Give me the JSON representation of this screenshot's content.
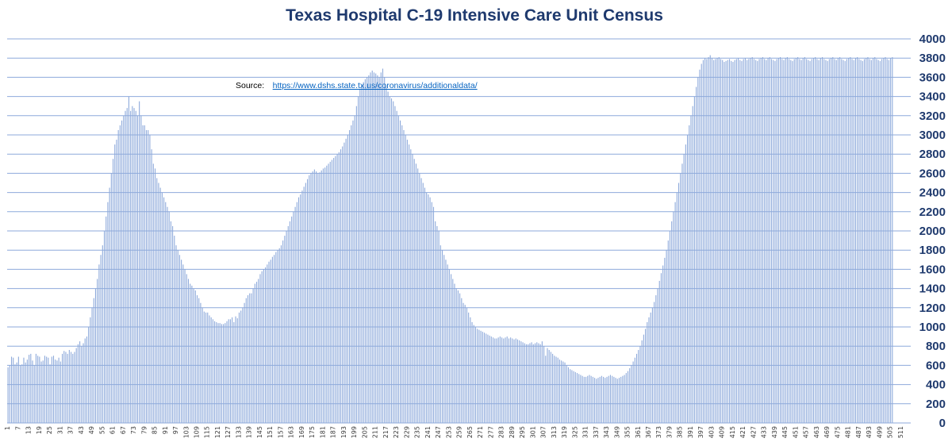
{
  "chart_data": {
    "type": "bar",
    "title": "Texas Hospital C-19 Intensive Care Unit Census",
    "xlabel": "",
    "ylabel": "",
    "ylim": [
      0,
      4000
    ],
    "y_ticks": [
      0,
      200,
      400,
      600,
      800,
      1000,
      1200,
      1400,
      1600,
      1800,
      2000,
      2200,
      2400,
      2600,
      2800,
      3000,
      3200,
      3400,
      3600,
      3800,
      4000
    ],
    "x_count": 516,
    "x_tick_labels": [
      "1",
      "7",
      "13",
      "19",
      "25",
      "31",
      "37",
      "43",
      "49",
      "55",
      "61",
      "67",
      "73",
      "79",
      "85",
      "91",
      "97",
      "103",
      "109",
      "115",
      "121",
      "127",
      "133",
      "139",
      "145",
      "151",
      "157",
      "163",
      "169",
      "175",
      "181",
      "187",
      "193",
      "199",
      "205",
      "211",
      "217",
      "223",
      "229",
      "235",
      "241",
      "247",
      "253",
      "259",
      "265",
      "271",
      "277",
      "283",
      "289",
      "295",
      "301",
      "307",
      "313",
      "319",
      "325",
      "331",
      "337",
      "343",
      "349",
      "355",
      "361",
      "367",
      "373",
      "379",
      "385",
      "391",
      "397",
      "403",
      "409",
      "415",
      "421",
      "427",
      "433",
      "439",
      "445",
      "451",
      "457",
      "463",
      "469",
      "475",
      "481",
      "487",
      "493",
      "499",
      "505",
      "511"
    ],
    "bar_color": "#8eaadb",
    "grid": true,
    "grid_color": "#8eaadb",
    "annotation": {
      "prefix": "Source:",
      "link": "https://www.dshs.state.tx.us/coronavirus/additionaldata/"
    },
    "values": [
      580,
      600,
      690,
      680,
      610,
      630,
      690,
      600,
      610,
      680,
      630,
      660,
      710,
      720,
      650,
      600,
      720,
      700,
      690,
      640,
      650,
      700,
      690,
      680,
      610,
      690,
      700,
      660,
      650,
      680,
      640,
      720,
      750,
      740,
      720,
      760,
      740,
      720,
      740,
      780,
      820,
      850,
      800,
      830,
      880,
      900,
      1000,
      1100,
      1200,
      1300,
      1400,
      1500,
      1650,
      1750,
      1850,
      2000,
      2150,
      2300,
      2450,
      2600,
      2750,
      2900,
      2950,
      3050,
      3100,
      3150,
      3200,
      3250,
      3280,
      3400,
      3250,
      3300,
      3280,
      3250,
      3200,
      3350,
      3200,
      3100,
      3100,
      3050,
      3050,
      3000,
      2850,
      2700,
      2650,
      2550,
      2500,
      2450,
      2400,
      2350,
      2300,
      2250,
      2200,
      2100,
      2050,
      1950,
      1850,
      1800,
      1750,
      1700,
      1650,
      1600,
      1550,
      1500,
      1450,
      1430,
      1400,
      1380,
      1330,
      1300,
      1250,
      1200,
      1160,
      1150,
      1150,
      1120,
      1100,
      1080,
      1060,
      1050,
      1040,
      1040,
      1030,
      1030,
      1040,
      1060,
      1080,
      1080,
      1100,
      1050,
      1110,
      1090,
      1150,
      1170,
      1200,
      1250,
      1300,
      1330,
      1350,
      1350,
      1400,
      1450,
      1470,
      1500,
      1550,
      1580,
      1600,
      1620,
      1650,
      1680,
      1700,
      1730,
      1750,
      1780,
      1800,
      1820,
      1850,
      1900,
      1950,
      2000,
      2050,
      2100,
      2150,
      2200,
      2250,
      2300,
      2350,
      2380,
      2420,
      2460,
      2500,
      2540,
      2580,
      2600,
      2620,
      2640,
      2620,
      2600,
      2610,
      2630,
      2650,
      2660,
      2680,
      2700,
      2720,
      2740,
      2760,
      2780,
      2800,
      2820,
      2850,
      2880,
      2920,
      2960,
      3000,
      3050,
      3100,
      3150,
      3200,
      3300,
      3400,
      3480,
      3520,
      3550,
      3580,
      3600,
      3620,
      3650,
      3670,
      3650,
      3640,
      3620,
      3600,
      3650,
      3690,
      3600,
      3500,
      3450,
      3400,
      3380,
      3350,
      3300,
      3250,
      3200,
      3150,
      3100,
      3050,
      3000,
      2950,
      2900,
      2850,
      2800,
      2750,
      2700,
      2650,
      2600,
      2550,
      2500,
      2450,
      2400,
      2380,
      2350,
      2300,
      2250,
      2100,
      2050,
      2000,
      1850,
      1800,
      1750,
      1700,
      1650,
      1600,
      1550,
      1500,
      1450,
      1400,
      1380,
      1350,
      1300,
      1250,
      1230,
      1200,
      1150,
      1100,
      1050,
      1020,
      1000,
      980,
      970,
      960,
      950,
      940,
      930,
      920,
      910,
      900,
      890,
      880,
      880,
      890,
      900,
      890,
      880,
      890,
      900,
      880,
      890,
      880,
      870,
      880,
      870,
      860,
      850,
      840,
      830,
      820,
      820,
      830,
      840,
      820,
      830,
      840,
      830,
      820,
      850,
      800,
      700,
      780,
      760,
      740,
      720,
      700,
      690,
      680,
      660,
      650,
      640,
      630,
      600,
      580,
      560,
      550,
      540,
      530,
      520,
      510,
      500,
      490,
      480,
      480,
      490,
      500,
      490,
      480,
      470,
      460,
      470,
      480,
      490,
      480,
      470,
      480,
      490,
      500,
      490,
      480,
      470,
      460,
      470,
      480,
      490,
      500,
      520,
      540,
      570,
      600,
      640,
      680,
      720,
      760,
      800,
      860,
      920,
      980,
      1050,
      1100,
      1150,
      1200,
      1260,
      1330,
      1400,
      1480,
      1560,
      1640,
      1720,
      1800,
      1900,
      2000,
      2100,
      2200,
      2300,
      2400,
      2500,
      2600,
      2700,
      2800,
      2900,
      3000,
      3100,
      3200,
      3300,
      3400,
      3500,
      3600,
      3680,
      3740,
      3780,
      3800,
      3790,
      3810,
      3830,
      3800,
      3780,
      3790,
      3800,
      3810,
      3790,
      3780,
      3760,
      3770,
      3780,
      3790,
      3770,
      3760,
      3780,
      3790,
      3800,
      3780,
      3770,
      3790,
      3800,
      3780,
      3790,
      3800,
      3810,
      3790,
      3780,
      3770,
      3790,
      3800,
      3810,
      3790,
      3780,
      3800,
      3810,
      3790,
      3780,
      3770,
      3790,
      3800,
      3810,
      3790,
      3780,
      3800,
      3810,
      3790,
      3780,
      3770,
      3790,
      3800,
      3810,
      3790,
      3780,
      3800,
      3810,
      3790,
      3780,
      3770,
      3790,
      3800,
      3810,
      3790,
      3780,
      3800,
      3810,
      3790,
      3780,
      3770,
      3790,
      3800,
      3810,
      3790,
      3780,
      3800,
      3810,
      3790,
      3780,
      3770,
      3790,
      3800,
      3810,
      3790,
      3780,
      3800,
      3810,
      3790,
      3780,
      3770,
      3790,
      3800,
      3810,
      3790,
      3780,
      3800,
      3810,
      3790,
      3780,
      3770,
      3790,
      3800,
      3810,
      3790,
      3780,
      3800,
      3810
    ]
  }
}
